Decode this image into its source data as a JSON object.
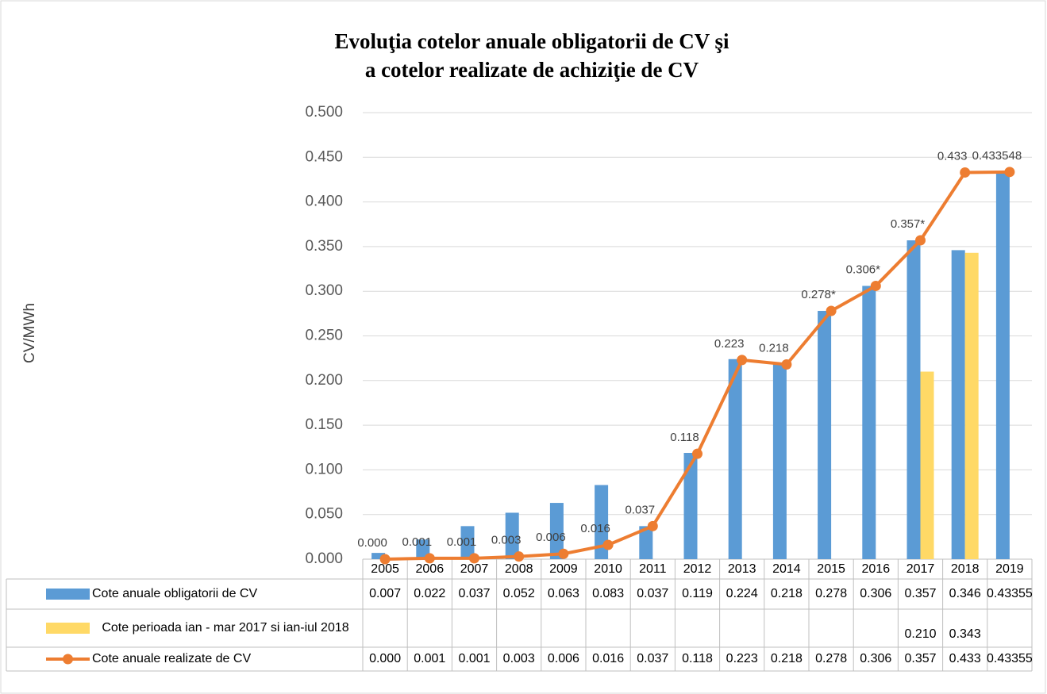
{
  "chart_data": {
    "type": "bar-line",
    "title": [
      "Evoluţia cotelor anuale obligatorii de CV şi",
      "a cotelor realizate de achiziţie de CV"
    ],
    "y_label": "CV/MWh",
    "categories": [
      "2005",
      "2006",
      "2007",
      "2008",
      "2009",
      "2010",
      "2011",
      "2012",
      "2013",
      "2014",
      "2015",
      "2016",
      "2017",
      "2018",
      "2019"
    ],
    "series": [
      {
        "name": "Cote anuale obligatorii de CV",
        "type": "bar",
        "color": "#5b9bd5",
        "values": [
          0.007,
          0.022,
          0.037,
          0.052,
          0.063,
          0.083,
          0.037,
          0.119,
          0.224,
          0.218,
          0.278,
          0.306,
          0.357,
          0.346,
          0.43355
        ],
        "table_labels": [
          "0.007",
          "0.022",
          "0.037",
          "0.052",
          "0.063",
          "0.083",
          "0.037",
          "0.119",
          "0.224",
          "0.218",
          "0.278",
          "0.306",
          "0.357",
          "0.346",
          "0.43355"
        ]
      },
      {
        "name": "Cote perioada ian - mar 2017 si ian-iul 2018",
        "type": "bar",
        "color": "#ffd966",
        "values": [
          null,
          null,
          null,
          null,
          null,
          null,
          null,
          null,
          null,
          null,
          null,
          null,
          0.21,
          0.343,
          null
        ],
        "table_labels": [
          null,
          null,
          null,
          null,
          null,
          null,
          null,
          null,
          null,
          null,
          null,
          null,
          "0.210",
          "0.343",
          null
        ]
      },
      {
        "name": "Cote anuale realizate de CV",
        "type": "line",
        "color": "#ed7d31",
        "values": [
          0,
          0.001,
          0.001,
          0.003,
          0.006,
          0.016,
          0.037,
          0.118,
          0.223,
          0.218,
          0.278,
          0.306,
          0.357,
          0.433,
          0.433548
        ],
        "value_labels": [
          "0.000",
          "0.001",
          "0.001",
          "0.003",
          "0.006",
          "0.016",
          "0.037",
          "0.118",
          "0.223",
          "0.218",
          "0.278*",
          "0.306*",
          "0.357*",
          "0.433",
          "0.433548"
        ],
        "table_labels": [
          "0.000",
          "0.001",
          "0.001",
          "0.003",
          "0.006",
          "0.016",
          "0.037",
          "0.118",
          "0.223",
          "0.218",
          "0.278",
          "0.306",
          "0.357",
          "0.433",
          "0.43355"
        ]
      }
    ],
    "ylim": [
      0,
      0.5
    ],
    "yticks": [
      {
        "value": 0,
        "label": "0.000"
      },
      {
        "value": 0.05,
        "label": "0.050"
      },
      {
        "value": 0.1,
        "label": "0.100"
      },
      {
        "value": 0.15,
        "label": "0.150"
      },
      {
        "value": 0.2,
        "label": "0.200"
      },
      {
        "value": 0.25,
        "label": "0.250"
      },
      {
        "value": 0.3,
        "label": "0.300"
      },
      {
        "value": 0.35,
        "label": "0.350"
      },
      {
        "value": 0.4,
        "label": "0.400"
      },
      {
        "value": 0.45,
        "label": "0.450"
      },
      {
        "value": 0.5,
        "label": "0.500"
      }
    ],
    "grid": true
  }
}
